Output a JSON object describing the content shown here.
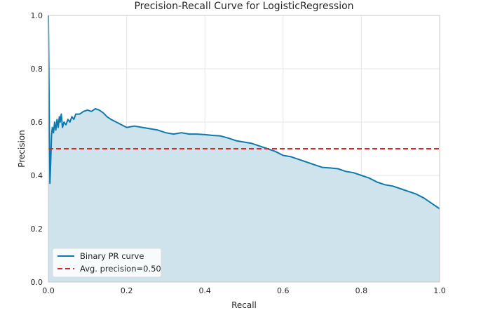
{
  "chart_data": {
    "type": "line",
    "title": "Precision-Recall Curve for LogisticRegression",
    "xlabel": "Recall",
    "ylabel": "Precision",
    "xlim": [
      0.0,
      1.0
    ],
    "ylim": [
      0.0,
      1.0
    ],
    "xticks": [
      "0.0",
      "0.2",
      "0.4",
      "0.6",
      "0.8",
      "1.0"
    ],
    "yticks": [
      "0.0",
      "0.2",
      "0.4",
      "0.6",
      "0.8",
      "1.0"
    ],
    "grid": true,
    "legend_position": "lower-left",
    "series": [
      {
        "name": "Binary PR curve",
        "color": "#0e7aab",
        "fill_color": "#cfe3ec",
        "points": [
          [
            0.0,
            1.0
          ],
          [
            0.002,
            0.67
          ],
          [
            0.004,
            0.37
          ],
          [
            0.006,
            0.45
          ],
          [
            0.008,
            0.55
          ],
          [
            0.01,
            0.58
          ],
          [
            0.013,
            0.56
          ],
          [
            0.016,
            0.6
          ],
          [
            0.019,
            0.57
          ],
          [
            0.022,
            0.61
          ],
          [
            0.025,
            0.58
          ],
          [
            0.028,
            0.62
          ],
          [
            0.03,
            0.6
          ],
          [
            0.033,
            0.63
          ],
          [
            0.036,
            0.58
          ],
          [
            0.04,
            0.6
          ],
          [
            0.045,
            0.59
          ],
          [
            0.05,
            0.61
          ],
          [
            0.055,
            0.6
          ],
          [
            0.06,
            0.62
          ],
          [
            0.065,
            0.61
          ],
          [
            0.07,
            0.63
          ],
          [
            0.08,
            0.63
          ],
          [
            0.09,
            0.64
          ],
          [
            0.1,
            0.645
          ],
          [
            0.11,
            0.64
          ],
          [
            0.12,
            0.65
          ],
          [
            0.13,
            0.645
          ],
          [
            0.14,
            0.635
          ],
          [
            0.15,
            0.62
          ],
          [
            0.16,
            0.61
          ],
          [
            0.18,
            0.595
          ],
          [
            0.2,
            0.58
          ],
          [
            0.22,
            0.585
          ],
          [
            0.24,
            0.58
          ],
          [
            0.26,
            0.575
          ],
          [
            0.28,
            0.57
          ],
          [
            0.3,
            0.56
          ],
          [
            0.32,
            0.555
          ],
          [
            0.34,
            0.56
          ],
          [
            0.36,
            0.555
          ],
          [
            0.38,
            0.555
          ],
          [
            0.4,
            0.553
          ],
          [
            0.42,
            0.55
          ],
          [
            0.44,
            0.548
          ],
          [
            0.46,
            0.54
          ],
          [
            0.48,
            0.53
          ],
          [
            0.5,
            0.525
          ],
          [
            0.52,
            0.52
          ],
          [
            0.54,
            0.51
          ],
          [
            0.56,
            0.5
          ],
          [
            0.58,
            0.49
          ],
          [
            0.6,
            0.475
          ],
          [
            0.62,
            0.47
          ],
          [
            0.64,
            0.46
          ],
          [
            0.66,
            0.45
          ],
          [
            0.68,
            0.44
          ],
          [
            0.7,
            0.43
          ],
          [
            0.72,
            0.428
          ],
          [
            0.74,
            0.425
          ],
          [
            0.76,
            0.415
          ],
          [
            0.78,
            0.41
          ],
          [
            0.8,
            0.4
          ],
          [
            0.82,
            0.39
          ],
          [
            0.84,
            0.375
          ],
          [
            0.86,
            0.365
          ],
          [
            0.88,
            0.36
          ],
          [
            0.9,
            0.35
          ],
          [
            0.92,
            0.34
          ],
          [
            0.94,
            0.33
          ],
          [
            0.96,
            0.315
          ],
          [
            0.98,
            0.295
          ],
          [
            1.0,
            0.275
          ]
        ]
      },
      {
        "name": "Avg. precision=0.50",
        "color": "#d62728",
        "style": "dashed",
        "points": [
          [
            0.0,
            0.5
          ],
          [
            1.0,
            0.5
          ]
        ]
      }
    ]
  }
}
